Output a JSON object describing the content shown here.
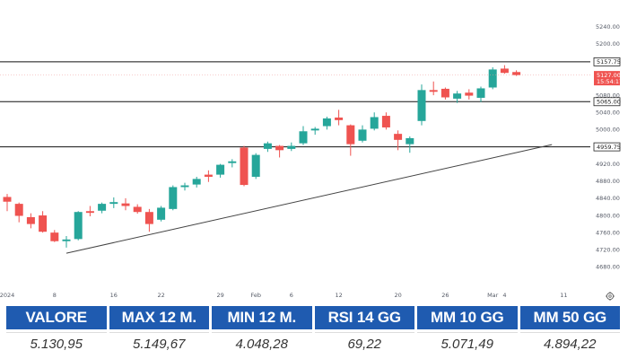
{
  "chart_data": {
    "type": "candlestick",
    "title": "",
    "xlabel": "",
    "ylabel": "",
    "ylim": [
      4660,
      5260
    ],
    "y_ticks": [
      4680,
      4720,
      4760,
      4800,
      4840,
      4880,
      4920,
      4960,
      5000,
      5040,
      5080,
      5120,
      5160,
      5200,
      5240
    ],
    "y_tick_labels": [
      "4680.00",
      "4720.00",
      "4760.00",
      "4800.00",
      "4840.00",
      "4880.00",
      "4920.00",
      "4960.00",
      "5000.00",
      "5040.00",
      "5080.00",
      "5120.00",
      "5160.00",
      "5200.00",
      "5240.00"
    ],
    "x_tick_labels": [
      "2024",
      "8",
      "16",
      "22",
      "29",
      "Feb",
      "6",
      "12",
      "20",
      "26",
      "Mar",
      "4",
      "11"
    ],
    "grid": false,
    "colors": {
      "up": "#26a69a",
      "down": "#ef5350",
      "lines": "#111111",
      "price_tag": "#ef5350"
    },
    "candles": [
      {
        "date": "2024-01-02",
        "open": 4843,
        "high": 4850,
        "low": 4810,
        "close": 4832
      },
      {
        "date": "2024-01-03",
        "open": 4827,
        "high": 4830,
        "low": 4784,
        "close": 4799
      },
      {
        "date": "2024-01-04",
        "open": 4796,
        "high": 4805,
        "low": 4770,
        "close": 4780
      },
      {
        "date": "2024-01-05",
        "open": 4800,
        "high": 4810,
        "low": 4760,
        "close": 4762
      },
      {
        "date": "2024-01-08",
        "open": 4760,
        "high": 4766,
        "low": 4738,
        "close": 4740
      },
      {
        "date": "2024-01-09",
        "open": 4740,
        "high": 4752,
        "low": 4725,
        "close": 4744
      },
      {
        "date": "2024-01-10",
        "open": 4745,
        "high": 4810,
        "low": 4742,
        "close": 4808
      },
      {
        "date": "2024-01-11",
        "open": 4810,
        "high": 4822,
        "low": 4798,
        "close": 4806
      },
      {
        "date": "2024-01-12",
        "open": 4811,
        "high": 4830,
        "low": 4805,
        "close": 4827
      },
      {
        "date": "2024-01-16",
        "open": 4827,
        "high": 4842,
        "low": 4817,
        "close": 4831
      },
      {
        "date": "2024-01-17",
        "open": 4828,
        "high": 4840,
        "low": 4812,
        "close": 4822
      },
      {
        "date": "2024-01-18",
        "open": 4820,
        "high": 4826,
        "low": 4804,
        "close": 4808
      },
      {
        "date": "2024-01-19",
        "open": 4808,
        "high": 4815,
        "low": 4762,
        "close": 4780
      },
      {
        "date": "2024-01-22",
        "open": 4790,
        "high": 4822,
        "low": 4786,
        "close": 4818
      },
      {
        "date": "2024-01-23",
        "open": 4815,
        "high": 4870,
        "low": 4812,
        "close": 4866
      },
      {
        "date": "2024-01-24",
        "open": 4866,
        "high": 4876,
        "low": 4858,
        "close": 4870
      },
      {
        "date": "2024-01-25",
        "open": 4872,
        "high": 4890,
        "low": 4865,
        "close": 4885
      },
      {
        "date": "2024-01-26",
        "open": 4895,
        "high": 4905,
        "low": 4878,
        "close": 4890
      },
      {
        "date": "2024-01-29",
        "open": 4895,
        "high": 4920,
        "low": 4888,
        "close": 4918
      },
      {
        "date": "2024-01-30",
        "open": 4922,
        "high": 4931,
        "low": 4912,
        "close": 4926
      },
      {
        "date": "2024-01-31",
        "open": 4958,
        "high": 4962,
        "low": 4868,
        "close": 4871
      },
      {
        "date": "2024-02-01",
        "open": 4890,
        "high": 4945,
        "low": 4885,
        "close": 4941
      },
      {
        "date": "2024-02-02",
        "open": 4955,
        "high": 4972,
        "low": 4948,
        "close": 4968
      },
      {
        "date": "2024-02-05",
        "open": 4962,
        "high": 4964,
        "low": 4935,
        "close": 4952
      },
      {
        "date": "2024-02-06",
        "open": 4955,
        "high": 4970,
        "low": 4950,
        "close": 4962
      },
      {
        "date": "2024-02-07",
        "open": 4968,
        "high": 5008,
        "low": 4964,
        "close": 4996
      },
      {
        "date": "2024-02-08",
        "open": 4998,
        "high": 5006,
        "low": 4988,
        "close": 5002
      },
      {
        "date": "2024-02-09",
        "open": 5008,
        "high": 5030,
        "low": 5000,
        "close": 5026
      },
      {
        "date": "2024-02-12",
        "open": 5028,
        "high": 5046,
        "low": 5010,
        "close": 5022
      },
      {
        "date": "2024-02-13",
        "open": 5010,
        "high": 5012,
        "low": 4939,
        "close": 4966
      },
      {
        "date": "2024-02-14",
        "open": 4974,
        "high": 5010,
        "low": 4970,
        "close": 5000
      },
      {
        "date": "2024-02-15",
        "open": 5002,
        "high": 5040,
        "low": 4998,
        "close": 5029
      },
      {
        "date": "2024-02-16",
        "open": 5032,
        "high": 5040,
        "low": 5000,
        "close": 5005
      },
      {
        "date": "2024-02-20",
        "open": 4990,
        "high": 4998,
        "low": 4952,
        "close": 4976
      },
      {
        "date": "2024-02-21",
        "open": 4966,
        "high": 4984,
        "low": 4946,
        "close": 4980
      },
      {
        "date": "2024-02-22",
        "open": 5020,
        "high": 5105,
        "low": 5010,
        "close": 5092
      },
      {
        "date": "2024-02-23",
        "open": 5092,
        "high": 5112,
        "low": 5080,
        "close": 5088
      },
      {
        "date": "2024-02-26",
        "open": 5095,
        "high": 5098,
        "low": 5070,
        "close": 5075
      },
      {
        "date": "2024-02-27",
        "open": 5072,
        "high": 5090,
        "low": 5062,
        "close": 5084
      },
      {
        "date": "2024-02-28",
        "open": 5086,
        "high": 5094,
        "low": 5070,
        "close": 5079
      },
      {
        "date": "2024-02-29",
        "open": 5074,
        "high": 5100,
        "low": 5064,
        "close": 5096
      },
      {
        "date": "2024-03-01",
        "open": 5098,
        "high": 5145,
        "low": 5094,
        "close": 5140
      },
      {
        "date": "2024-03-04",
        "open": 5142,
        "high": 5150,
        "low": 5130,
        "close": 5132
      },
      {
        "date": "2024-03-05",
        "open": 5134,
        "high": 5138,
        "low": 5125,
        "close": 5127
      }
    ],
    "x_tick_dates": [
      "2024-01-02",
      "2024-01-08",
      "2024-01-16",
      "2024-01-22",
      "2024-01-29",
      "2024-02-01",
      "2024-02-06",
      "2024-02-12",
      "2024-02-20",
      "2024-02-26",
      "2024-03-01",
      "2024-03-04",
      "2024-03-11"
    ],
    "horizontal_levels": [
      {
        "value": 5157.75,
        "label": "5157.75"
      },
      {
        "value": 5065.0,
        "label": "5065.00"
      },
      {
        "value": 4959.75,
        "label": "4959.75"
      }
    ],
    "trendline": [
      {
        "date": "2024-01-09",
        "value": 4712
      },
      {
        "date": "2024-03-08",
        "value": 4965
      }
    ],
    "last_price": {
      "value": 5127.0,
      "label": "5127.00",
      "sublabel": "15:54:17"
    }
  },
  "stats_table": {
    "headers": [
      "VALORE",
      "MAX 12 M.",
      "MIN 12 M.",
      "RSI 14 GG",
      "MM 10 GG",
      "MM 50 GG"
    ],
    "values": [
      "5.130,95",
      "5.149,67",
      "4.048,28",
      "69,22",
      "5.071,49",
      "4.894,22"
    ]
  },
  "settings_icon": "gear-icon"
}
